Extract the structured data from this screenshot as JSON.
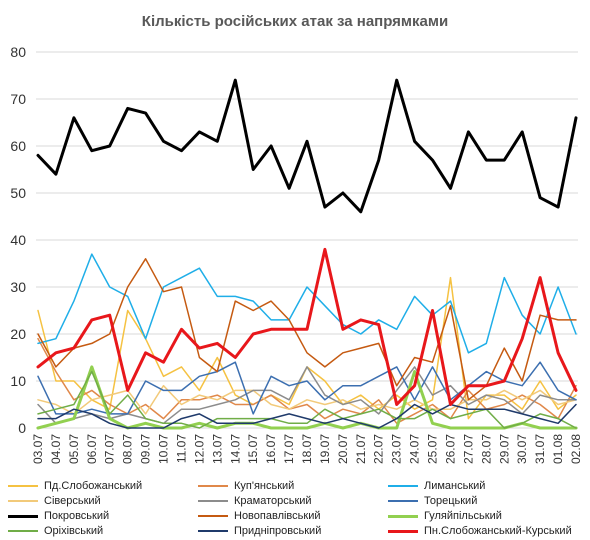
{
  "chart_data": {
    "type": "line",
    "title": "Кількість російських атак за напрямками",
    "ylim": [
      0,
      80
    ],
    "yticks": [
      0,
      10,
      20,
      30,
      40,
      50,
      60,
      70,
      80
    ],
    "grid": true,
    "legend_position": "bottom",
    "x": [
      "03.07",
      "04.07",
      "05.07",
      "06.07",
      "07.07",
      "08.07",
      "09.07",
      "10.07",
      "11.07",
      "12.07",
      "13.07",
      "14.07",
      "15.07",
      "16.07",
      "17.07",
      "18.07",
      "19.07",
      "20.07",
      "21.07",
      "22.07",
      "23.07",
      "24.07",
      "25.07",
      "26.07",
      "27.07",
      "28.07",
      "29.07",
      "30.07",
      "31.07",
      "01.08",
      "02.08"
    ],
    "series": [
      {
        "name": "Пд.Слобожанський",
        "color": "#F5C242",
        "width": 1.5,
        "values": [
          25,
          10,
          10,
          6,
          4,
          25,
          19,
          11,
          13,
          8,
          15,
          7,
          5,
          7,
          5,
          13,
          10,
          5,
          7,
          4,
          7,
          4,
          6,
          32,
          2,
          7,
          7,
          4,
          10,
          4,
          7
        ]
      },
      {
        "name": "Куп'янський",
        "color": "#E0884A",
        "width": 1.5,
        "values": [
          19,
          12,
          6,
          8,
          5,
          3,
          5,
          2,
          6,
          6,
          7,
          5,
          5,
          7,
          4,
          5,
          2,
          4,
          3,
          6,
          1,
          3,
          5,
          2,
          8,
          4,
          5,
          7,
          5,
          2,
          9
        ]
      },
      {
        "name": "Лиманський",
        "color": "#1FAEE8",
        "width": 1.5,
        "values": [
          18,
          19,
          27,
          37,
          30,
          28,
          19,
          30,
          32,
          34,
          28,
          28,
          27,
          23,
          23,
          30,
          26,
          22,
          20,
          23,
          21,
          28,
          24,
          27,
          16,
          18,
          32,
          24,
          20,
          30,
          20
        ]
      },
      {
        "name": "Сіверський",
        "color": "#F2CA7A",
        "width": 1.5,
        "values": [
          6,
          5,
          3,
          6,
          7,
          8,
          3,
          9,
          5,
          7,
          6,
          8,
          8,
          5,
          4,
          6,
          5,
          6,
          4,
          5,
          4,
          6,
          4,
          4,
          6,
          6,
          8,
          6,
          8,
          5,
          6
        ]
      },
      {
        "name": "Краматорський",
        "color": "#8C8C8C",
        "width": 1.5,
        "values": [
          5,
          1,
          2,
          3,
          2,
          3,
          2,
          1,
          4,
          4,
          5,
          6,
          8,
          8,
          6,
          13,
          7,
          5,
          6,
          3,
          8,
          13,
          7,
          9,
          5,
          7,
          6,
          3,
          7,
          6,
          6
        ]
      },
      {
        "name": "Торецький",
        "color": "#3C6FB0",
        "width": 1.5,
        "values": [
          11,
          3,
          3,
          4,
          3,
          3,
          10,
          8,
          8,
          11,
          12,
          14,
          3,
          11,
          9,
          10,
          6,
          9,
          9,
          11,
          13,
          6,
          13,
          6,
          9,
          12,
          10,
          9,
          14,
          8,
          6
        ]
      },
      {
        "name": "Покровський",
        "color": "#000000",
        "width": 3,
        "values": [
          58,
          54,
          66,
          59,
          60,
          68,
          67,
          61,
          59,
          63,
          61,
          74,
          55,
          60,
          51,
          61,
          47,
          50,
          46,
          57,
          74,
          61,
          57,
          51,
          63,
          57,
          57,
          63,
          49,
          47,
          66
        ]
      },
      {
        "name": "Новопавлівський",
        "color": "#C55A11",
        "width": 1.5,
        "values": [
          20,
          13,
          17,
          18,
          20,
          30,
          36,
          29,
          30,
          15,
          12,
          27,
          25,
          27,
          23,
          16,
          13,
          16,
          17,
          18,
          9,
          15,
          14,
          26,
          6,
          9,
          17,
          10,
          24,
          23,
          23
        ]
      },
      {
        "name": "Гуляйпільський",
        "color": "#92D050",
        "width": 3,
        "values": [
          0,
          1,
          2,
          13,
          2,
          0,
          1,
          0,
          0,
          1,
          0,
          1,
          1,
          0,
          0,
          0,
          1,
          0,
          1,
          0,
          0,
          12,
          1,
          0,
          0,
          0,
          0,
          1,
          0,
          0,
          0
        ]
      },
      {
        "name": "Оріхівський",
        "color": "#70AD47",
        "width": 1.5,
        "values": [
          3,
          4,
          5,
          12,
          3,
          7,
          2,
          1,
          1,
          0,
          2,
          2,
          2,
          2,
          1,
          1,
          4,
          2,
          3,
          4,
          2,
          2,
          4,
          2,
          3,
          4,
          0,
          1,
          3,
          2,
          0
        ]
      },
      {
        "name": "Придніпровський",
        "color": "#1F3A6B",
        "width": 1.5,
        "values": [
          2,
          2,
          4,
          3,
          1,
          0,
          0,
          0,
          2,
          3,
          1,
          1,
          1,
          2,
          3,
          2,
          1,
          2,
          1,
          0,
          2,
          5,
          3,
          5,
          4,
          4,
          4,
          3,
          2,
          1,
          5
        ]
      },
      {
        "name": "Пн.Слобожанський-Курський",
        "color": "#E8171B",
        "width": 3,
        "values": [
          13,
          16,
          17,
          23,
          24,
          8,
          16,
          14,
          21,
          17,
          18,
          15,
          20,
          21,
          21,
          21,
          38,
          21,
          23,
          22,
          5,
          9,
          25,
          5,
          9,
          9,
          10,
          19,
          32,
          16,
          8
        ]
      }
    ]
  }
}
